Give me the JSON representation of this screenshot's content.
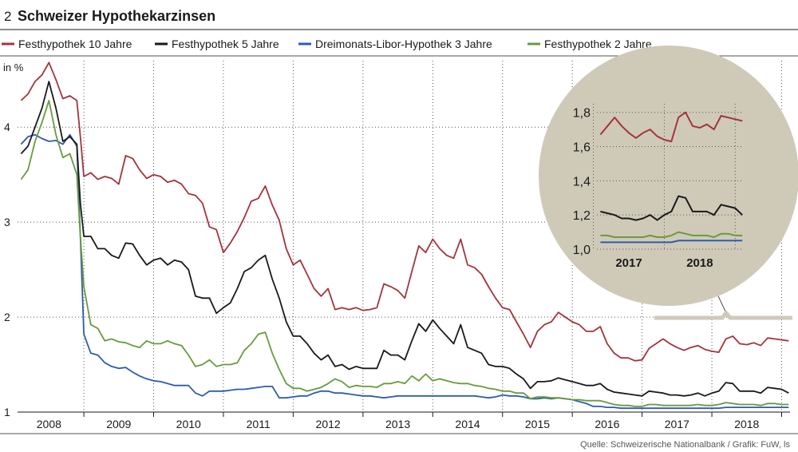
{
  "chart_data": {
    "type": "line",
    "figure_number": "2",
    "title": "Schweizer Hypothekarzinsen",
    "ylabel": "in %",
    "source": "Quelle: Schweizerische Nationalbank / Grafik: FuW, ls",
    "ylim": [
      1,
      4.75
    ],
    "y_ticks": [
      "1",
      "2",
      "3",
      "4"
    ],
    "x_ticks": [
      "2008",
      "2009",
      "2010",
      "2011",
      "2012",
      "2013",
      "2014",
      "2015",
      "2016",
      "2017",
      "2018"
    ],
    "x_range": [
      2007.55,
      2018.62
    ],
    "grid": "dotted",
    "legend_position": "top",
    "series": [
      {
        "name": "Festhypothek 10 Jahre",
        "color": "#a3343c",
        "x": [
          2007.6,
          2007.7,
          2007.8,
          2007.9,
          2008.0,
          2008.1,
          2008.2,
          2008.3,
          2008.4,
          2008.45,
          2008.5,
          2008.6,
          2008.7,
          2008.8,
          2008.9,
          2009.0,
          2009.1,
          2009.2,
          2009.3,
          2009.4,
          2009.5,
          2009.6,
          2009.7,
          2009.8,
          2009.9,
          2010.0,
          2010.1,
          2010.2,
          2010.3,
          2010.4,
          2010.5,
          2010.6,
          2010.7,
          2010.8,
          2010.9,
          2011.0,
          2011.1,
          2011.2,
          2011.3,
          2011.4,
          2011.5,
          2011.6,
          2011.7,
          2011.8,
          2011.9,
          2012.0,
          2012.1,
          2012.2,
          2012.3,
          2012.4,
          2012.5,
          2012.6,
          2012.7,
          2012.8,
          2012.9,
          2013.0,
          2013.1,
          2013.2,
          2013.3,
          2013.4,
          2013.5,
          2013.6,
          2013.7,
          2013.8,
          2013.9,
          2014.0,
          2014.1,
          2014.2,
          2014.3,
          2014.4,
          2014.5,
          2014.6,
          2014.7,
          2014.8,
          2014.9,
          2015.0,
          2015.1,
          2015.2,
          2015.3,
          2015.4,
          2015.5,
          2015.6,
          2015.7,
          2015.8,
          2015.9,
          2016.0,
          2016.1,
          2016.2,
          2016.3,
          2016.4,
          2016.5,
          2016.6,
          2016.7,
          2016.8,
          2016.9,
          2017.0,
          2017.1,
          2017.2,
          2017.3,
          2017.4,
          2017.5,
          2017.6,
          2017.7,
          2017.8,
          2017.9,
          2018.0,
          2018.1,
          2018.2,
          2018.3,
          2018.4,
          2018.5,
          2018.6
        ],
        "values": [
          4.28,
          4.35,
          4.48,
          4.55,
          4.68,
          4.5,
          4.3,
          4.33,
          4.28,
          3.9,
          3.48,
          3.52,
          3.45,
          3.48,
          3.46,
          3.4,
          3.7,
          3.67,
          3.55,
          3.46,
          3.5,
          3.48,
          3.42,
          3.44,
          3.4,
          3.3,
          3.28,
          3.2,
          2.95,
          2.92,
          2.68,
          2.78,
          2.9,
          3.05,
          3.22,
          3.25,
          3.38,
          3.18,
          3.02,
          2.72,
          2.55,
          2.6,
          2.45,
          2.3,
          2.22,
          2.3,
          2.08,
          2.1,
          2.08,
          2.1,
          2.07,
          2.08,
          2.1,
          2.35,
          2.32,
          2.28,
          2.2,
          2.48,
          2.75,
          2.68,
          2.82,
          2.72,
          2.65,
          2.62,
          2.82,
          2.55,
          2.52,
          2.45,
          2.32,
          2.2,
          2.1,
          2.08,
          1.95,
          1.82,
          1.68,
          1.85,
          1.92,
          1.95,
          2.05,
          2.0,
          1.95,
          1.92,
          1.85,
          1.85,
          1.9,
          1.72,
          1.62,
          1.57,
          1.57,
          1.54,
          1.55,
          1.67,
          1.72,
          1.77,
          1.72,
          1.68,
          1.65,
          1.68,
          1.7,
          1.66,
          1.64,
          1.63,
          1.77,
          1.8,
          1.72,
          1.71,
          1.73,
          1.7,
          1.78,
          1.77,
          1.76,
          1.75
        ]
      },
      {
        "name": "Festhypothek 5 Jahre",
        "color": "#1a1a1a",
        "x": [
          2007.6,
          2007.7,
          2007.8,
          2007.9,
          2008.0,
          2008.1,
          2008.2,
          2008.3,
          2008.4,
          2008.45,
          2008.5,
          2008.6,
          2008.7,
          2008.8,
          2008.9,
          2009.0,
          2009.1,
          2009.2,
          2009.3,
          2009.4,
          2009.5,
          2009.6,
          2009.7,
          2009.8,
          2009.9,
          2010.0,
          2010.1,
          2010.2,
          2010.3,
          2010.4,
          2010.5,
          2010.6,
          2010.7,
          2010.8,
          2010.9,
          2011.0,
          2011.1,
          2011.2,
          2011.3,
          2011.4,
          2011.5,
          2011.6,
          2011.7,
          2011.8,
          2011.9,
          2012.0,
          2012.1,
          2012.2,
          2012.3,
          2012.4,
          2012.5,
          2012.6,
          2012.7,
          2012.8,
          2012.9,
          2013.0,
          2013.1,
          2013.2,
          2013.3,
          2013.4,
          2013.5,
          2013.6,
          2013.7,
          2013.8,
          2013.9,
          2014.0,
          2014.1,
          2014.2,
          2014.3,
          2014.4,
          2014.5,
          2014.6,
          2014.7,
          2014.8,
          2014.9,
          2015.0,
          2015.1,
          2015.2,
          2015.3,
          2015.4,
          2015.5,
          2015.6,
          2015.7,
          2015.8,
          2015.9,
          2016.0,
          2016.1,
          2016.2,
          2016.3,
          2016.4,
          2016.5,
          2016.6,
          2016.7,
          2016.8,
          2016.9,
          2017.0,
          2017.1,
          2017.2,
          2017.3,
          2017.4,
          2017.5,
          2017.6,
          2017.7,
          2017.8,
          2017.9,
          2018.0,
          2018.1,
          2018.2,
          2018.3,
          2018.4,
          2018.5,
          2018.6
        ],
        "values": [
          3.72,
          3.8,
          4.0,
          4.2,
          4.48,
          4.2,
          3.85,
          3.9,
          3.82,
          3.2,
          2.85,
          2.85,
          2.72,
          2.72,
          2.65,
          2.62,
          2.78,
          2.77,
          2.65,
          2.55,
          2.6,
          2.62,
          2.55,
          2.6,
          2.58,
          2.5,
          2.22,
          2.2,
          2.2,
          2.04,
          2.1,
          2.15,
          2.3,
          2.48,
          2.52,
          2.6,
          2.65,
          2.4,
          2.2,
          1.95,
          1.8,
          1.8,
          1.72,
          1.62,
          1.55,
          1.6,
          1.48,
          1.5,
          1.45,
          1.48,
          1.46,
          1.46,
          1.46,
          1.65,
          1.6,
          1.6,
          1.55,
          1.75,
          1.93,
          1.85,
          1.97,
          1.88,
          1.8,
          1.72,
          1.92,
          1.68,
          1.65,
          1.62,
          1.5,
          1.48,
          1.48,
          1.46,
          1.4,
          1.35,
          1.25,
          1.32,
          1.32,
          1.33,
          1.36,
          1.34,
          1.32,
          1.3,
          1.28,
          1.28,
          1.3,
          1.24,
          1.21,
          1.2,
          1.19,
          1.18,
          1.17,
          1.22,
          1.21,
          1.2,
          1.18,
          1.18,
          1.17,
          1.18,
          1.2,
          1.17,
          1.2,
          1.22,
          1.31,
          1.3,
          1.22,
          1.22,
          1.22,
          1.2,
          1.26,
          1.25,
          1.24,
          1.2
        ]
      },
      {
        "name": "Dreimonats-Libor-Hypothek 3 Jahre",
        "color": "#2d5cac",
        "x": [
          2007.6,
          2007.7,
          2007.8,
          2007.9,
          2008.0,
          2008.1,
          2008.2,
          2008.3,
          2008.4,
          2008.45,
          2008.5,
          2008.6,
          2008.7,
          2008.8,
          2008.9,
          2009.0,
          2009.1,
          2009.2,
          2009.3,
          2009.4,
          2009.5,
          2009.6,
          2009.7,
          2009.8,
          2009.9,
          2010.0,
          2010.1,
          2010.2,
          2010.3,
          2010.4,
          2010.5,
          2010.6,
          2010.7,
          2010.8,
          2010.9,
          2011.0,
          2011.1,
          2011.2,
          2011.3,
          2011.4,
          2011.5,
          2011.6,
          2011.7,
          2011.8,
          2011.9,
          2012.0,
          2012.1,
          2012.2,
          2012.3,
          2012.4,
          2012.5,
          2012.6,
          2012.7,
          2012.8,
          2012.9,
          2013.0,
          2013.1,
          2013.2,
          2013.3,
          2013.4,
          2013.5,
          2013.6,
          2013.7,
          2013.8,
          2013.9,
          2014.0,
          2014.1,
          2014.2,
          2014.3,
          2014.4,
          2014.5,
          2014.6,
          2014.7,
          2014.8,
          2014.9,
          2015.0,
          2015.1,
          2015.2,
          2015.3,
          2015.4,
          2015.5,
          2015.6,
          2015.7,
          2015.8,
          2015.9,
          2016.0,
          2016.1,
          2016.2,
          2016.3,
          2016.4,
          2016.5,
          2016.6,
          2016.7,
          2016.8,
          2016.9,
          2017.0,
          2017.1,
          2017.2,
          2017.3,
          2017.4,
          2017.5,
          2017.6,
          2017.7,
          2017.8,
          2017.9,
          2018.0,
          2018.1,
          2018.2,
          2018.3,
          2018.4,
          2018.5,
          2018.6
        ],
        "values": [
          3.82,
          3.9,
          3.92,
          3.88,
          3.85,
          3.86,
          3.82,
          3.92,
          3.8,
          2.85,
          1.82,
          1.62,
          1.6,
          1.52,
          1.48,
          1.46,
          1.47,
          1.42,
          1.38,
          1.35,
          1.33,
          1.32,
          1.3,
          1.28,
          1.28,
          1.28,
          1.2,
          1.17,
          1.22,
          1.22,
          1.22,
          1.23,
          1.24,
          1.24,
          1.25,
          1.26,
          1.27,
          1.27,
          1.15,
          1.15,
          1.16,
          1.17,
          1.17,
          1.2,
          1.22,
          1.22,
          1.2,
          1.2,
          1.19,
          1.18,
          1.17,
          1.17,
          1.16,
          1.15,
          1.16,
          1.17,
          1.17,
          1.17,
          1.17,
          1.17,
          1.17,
          1.17,
          1.17,
          1.17,
          1.17,
          1.17,
          1.17,
          1.16,
          1.15,
          1.16,
          1.18,
          1.17,
          1.17,
          1.16,
          1.14,
          1.14,
          1.15,
          1.14,
          1.15,
          1.14,
          1.13,
          1.11,
          1.09,
          1.06,
          1.06,
          1.05,
          1.05,
          1.04,
          1.04,
          1.04,
          1.04,
          1.04,
          1.04,
          1.04,
          1.04,
          1.04,
          1.04,
          1.04,
          1.04,
          1.04,
          1.04,
          1.04,
          1.05,
          1.05,
          1.05,
          1.05,
          1.05,
          1.05,
          1.05,
          1.05,
          1.05,
          1.05
        ]
      },
      {
        "name": "Festhypothek 2 Jahre",
        "color": "#6a9a3c",
        "x": [
          2007.6,
          2007.7,
          2007.8,
          2007.9,
          2008.0,
          2008.1,
          2008.2,
          2008.3,
          2008.4,
          2008.45,
          2008.5,
          2008.6,
          2008.7,
          2008.8,
          2008.9,
          2009.0,
          2009.1,
          2009.2,
          2009.3,
          2009.4,
          2009.5,
          2009.6,
          2009.7,
          2009.8,
          2009.9,
          2010.0,
          2010.1,
          2010.2,
          2010.3,
          2010.4,
          2010.5,
          2010.6,
          2010.7,
          2010.8,
          2010.9,
          2011.0,
          2011.1,
          2011.2,
          2011.3,
          2011.4,
          2011.5,
          2011.6,
          2011.7,
          2011.8,
          2011.9,
          2012.0,
          2012.1,
          2012.2,
          2012.3,
          2012.4,
          2012.5,
          2012.6,
          2012.7,
          2012.8,
          2012.9,
          2013.0,
          2013.1,
          2013.2,
          2013.3,
          2013.4,
          2013.5,
          2013.6,
          2013.7,
          2013.8,
          2013.9,
          2014.0,
          2014.1,
          2014.2,
          2014.3,
          2014.4,
          2014.5,
          2014.6,
          2014.7,
          2014.8,
          2014.9,
          2015.0,
          2015.1,
          2015.2,
          2015.3,
          2015.4,
          2015.5,
          2015.6,
          2015.7,
          2015.8,
          2015.9,
          2016.0,
          2016.1,
          2016.2,
          2016.3,
          2016.4,
          2016.5,
          2016.6,
          2016.7,
          2016.8,
          2016.9,
          2017.0,
          2017.1,
          2017.2,
          2017.3,
          2017.4,
          2017.5,
          2017.6,
          2017.7,
          2017.8,
          2017.9,
          2018.0,
          2018.1,
          2018.2,
          2018.3,
          2018.4,
          2018.5,
          2018.6
        ],
        "values": [
          3.45,
          3.55,
          3.85,
          4.05,
          4.28,
          3.92,
          3.68,
          3.72,
          3.5,
          2.85,
          2.32,
          1.92,
          1.88,
          1.75,
          1.77,
          1.74,
          1.73,
          1.7,
          1.68,
          1.75,
          1.72,
          1.72,
          1.75,
          1.72,
          1.7,
          1.6,
          1.48,
          1.5,
          1.55,
          1.48,
          1.5,
          1.5,
          1.52,
          1.65,
          1.72,
          1.82,
          1.84,
          1.62,
          1.45,
          1.3,
          1.25,
          1.25,
          1.22,
          1.24,
          1.26,
          1.3,
          1.35,
          1.32,
          1.26,
          1.28,
          1.27,
          1.27,
          1.26,
          1.3,
          1.3,
          1.32,
          1.3,
          1.38,
          1.33,
          1.4,
          1.33,
          1.35,
          1.33,
          1.31,
          1.3,
          1.3,
          1.28,
          1.27,
          1.25,
          1.24,
          1.22,
          1.22,
          1.2,
          1.2,
          1.14,
          1.16,
          1.16,
          1.15,
          1.15,
          1.14,
          1.13,
          1.13,
          1.12,
          1.12,
          1.12,
          1.1,
          1.08,
          1.07,
          1.07,
          1.06,
          1.06,
          1.08,
          1.08,
          1.07,
          1.07,
          1.07,
          1.07,
          1.07,
          1.08,
          1.07,
          1.07,
          1.08,
          1.1,
          1.09,
          1.08,
          1.08,
          1.08,
          1.07,
          1.09,
          1.09,
          1.08,
          1.08
        ]
      }
    ],
    "inset": {
      "ylim": [
        1.0,
        1.85
      ],
      "y_ticks": [
        "1,0",
        "1,2",
        "1,4",
        "1,6",
        "1,8"
      ],
      "x_ticks": [
        "2017",
        "2018"
      ],
      "x_range": [
        2016.55,
        2018.62
      ]
    }
  }
}
